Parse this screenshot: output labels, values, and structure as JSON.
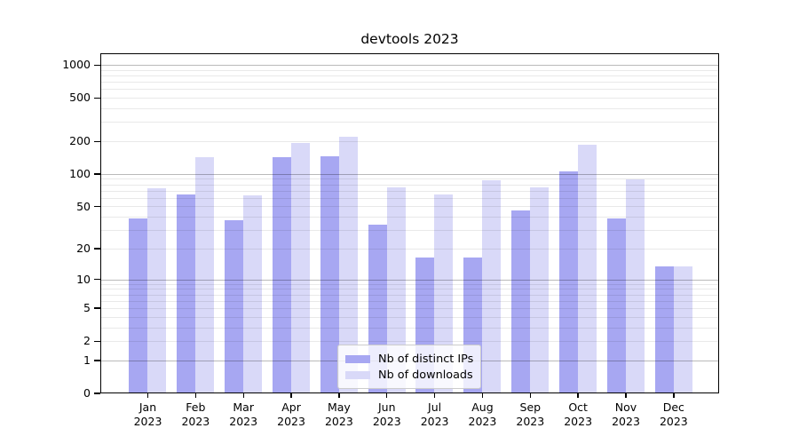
{
  "chart_data": {
    "type": "bar",
    "title": "devtools 2023",
    "categories": [
      "Jan 2023",
      "Feb 2023",
      "Mar 2023",
      "Apr 2023",
      "May 2023",
      "Jun 2023",
      "Jul 2023",
      "Aug 2023",
      "Sep 2023",
      "Oct 2023",
      "Nov 2023",
      "Dec 2023"
    ],
    "series": [
      {
        "name": "Nb of distinct IPs",
        "color": "#a7a7f2",
        "values": [
          40,
          67,
          38,
          147,
          150,
          35,
          17,
          17,
          47,
          108,
          40,
          14
        ]
      },
      {
        "name": "Nb of downloads",
        "color": "#d9d9f8",
        "values": [
          76,
          147,
          65,
          200,
          225,
          77,
          66,
          90,
          78,
          192,
          92,
          14
        ]
      }
    ],
    "xlabel": "",
    "ylabel": "",
    "yscale": "log1p",
    "ylim": [
      0,
      1300
    ],
    "y_ticks": [
      0,
      1,
      2,
      5,
      10,
      20,
      50,
      100,
      200,
      500,
      1000
    ],
    "grid": "both",
    "legend_position": "lower center"
  }
}
